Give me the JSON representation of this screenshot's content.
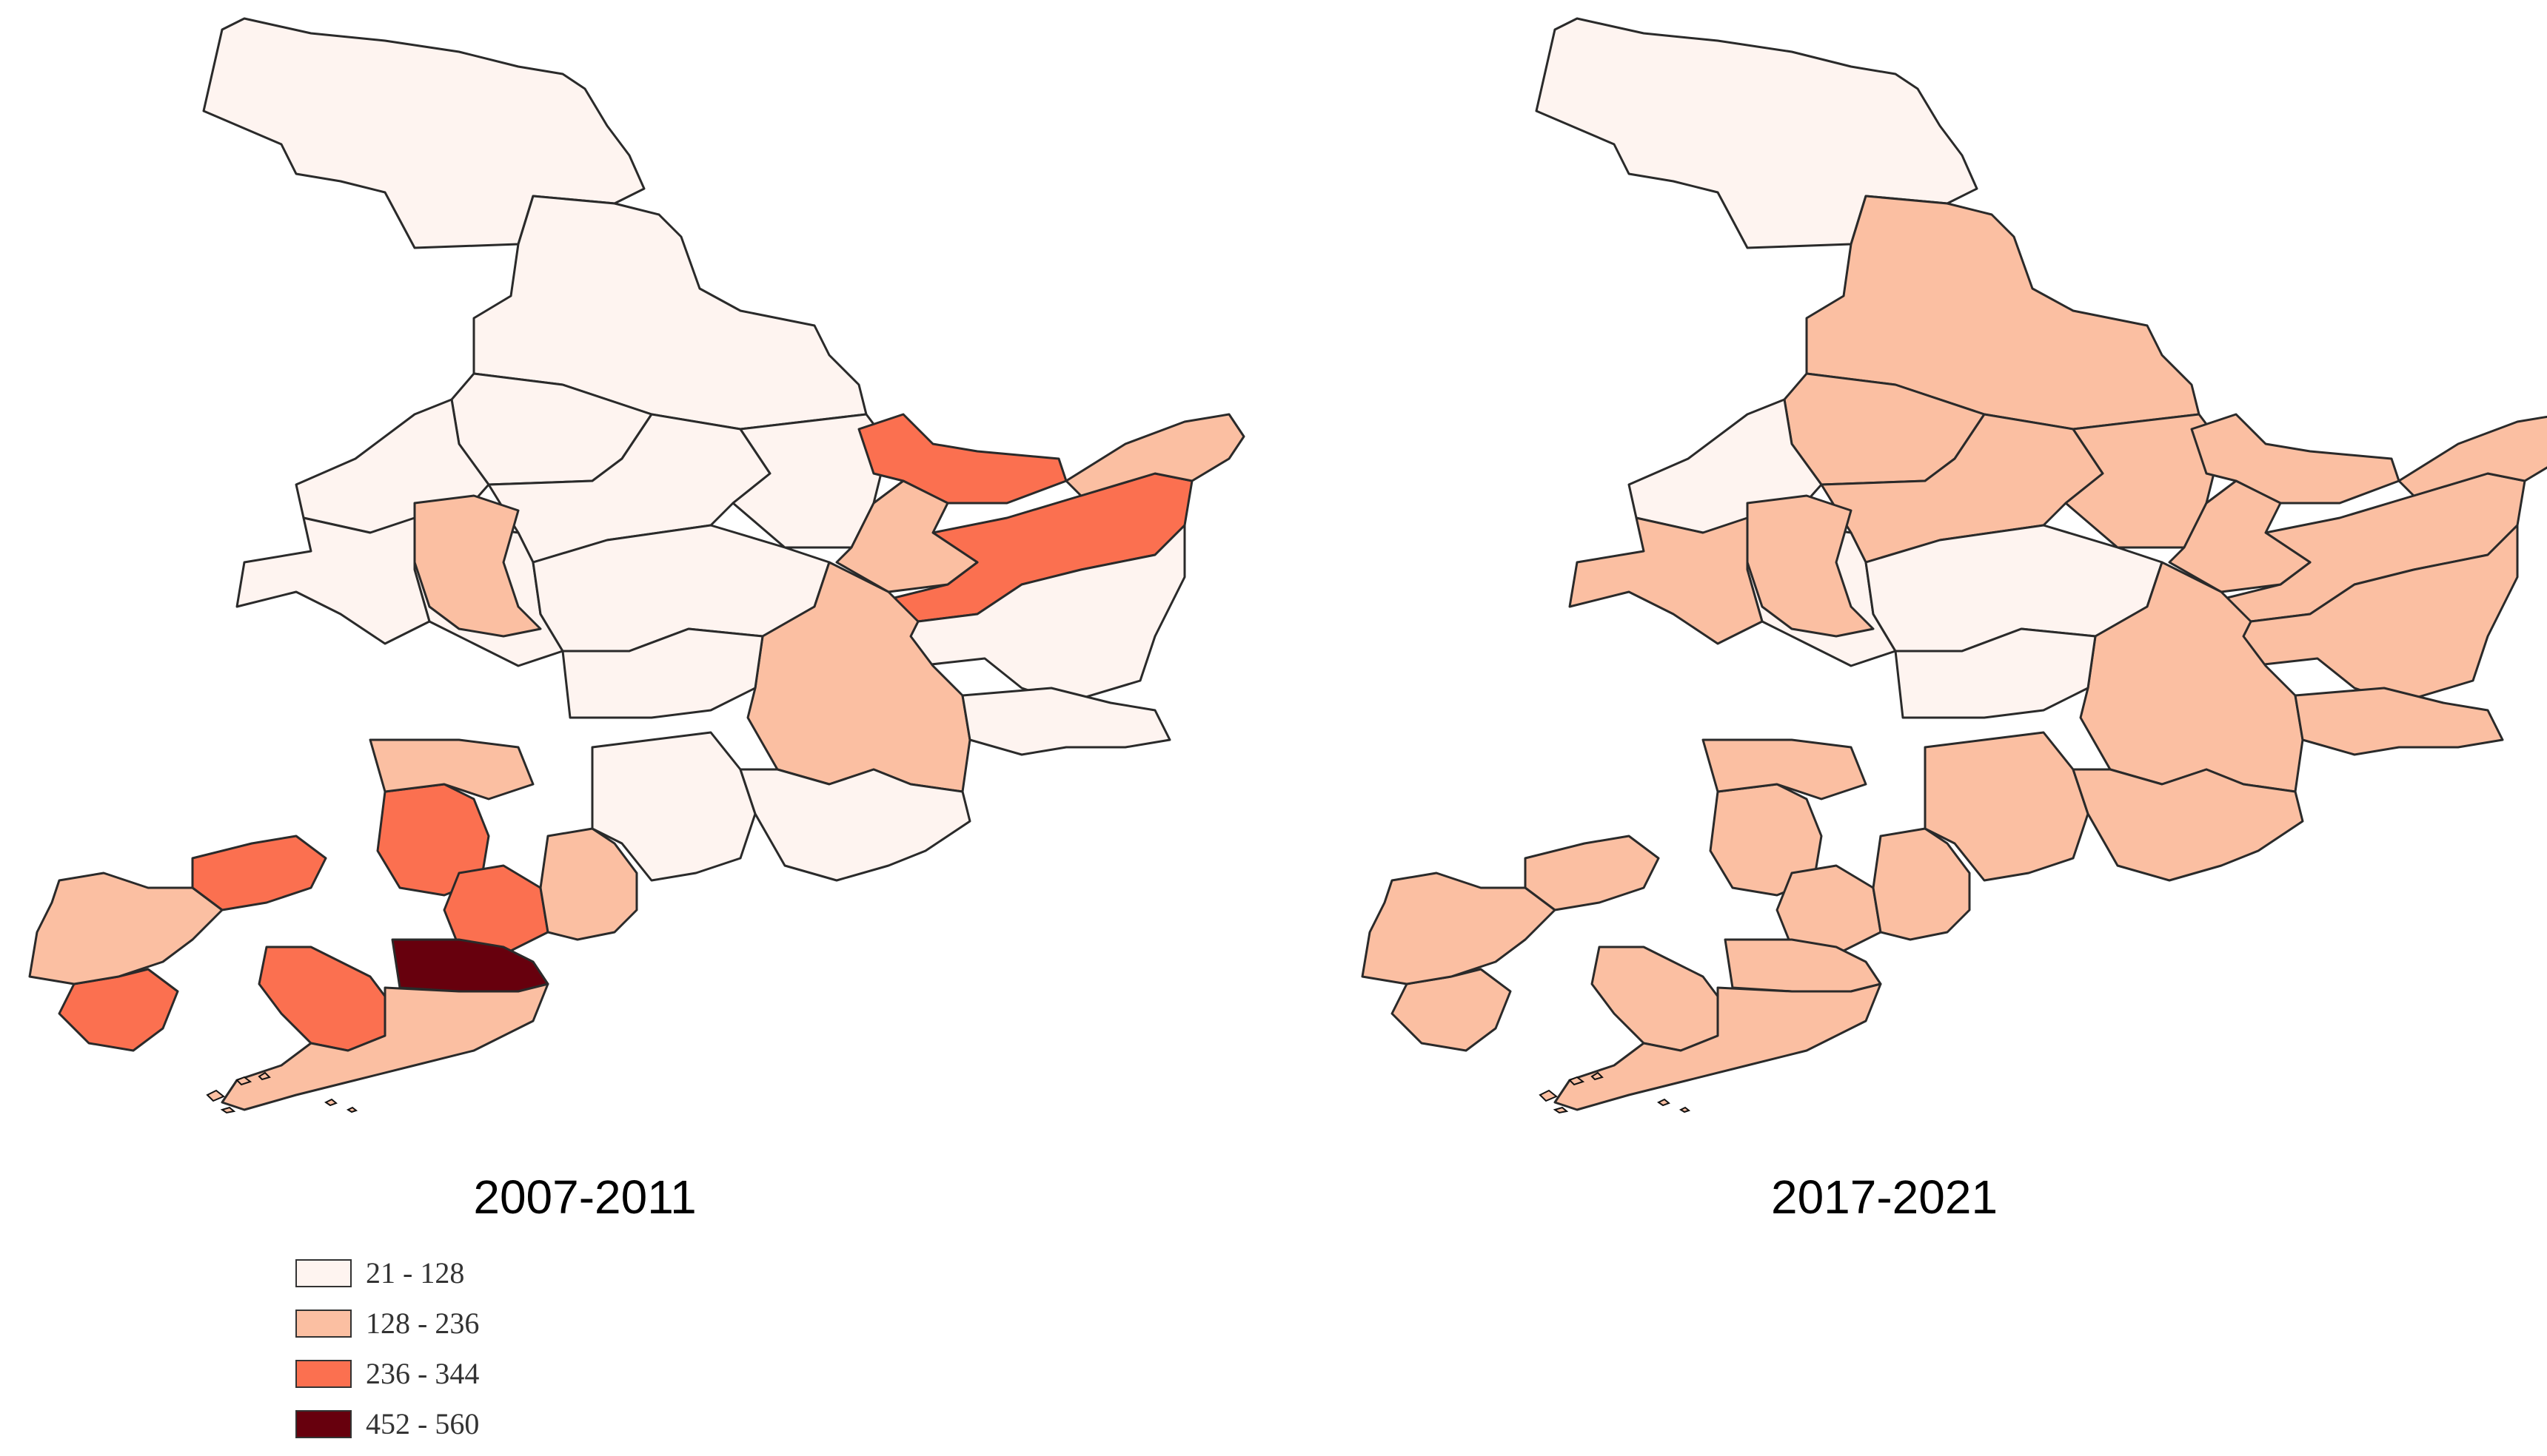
{
  "maps": [
    {
      "title": "2007-2011",
      "regions": [
        {
          "name": "r01",
          "value": 60
        },
        {
          "name": "r02",
          "value": 60
        },
        {
          "name": "r03",
          "value": 60
        },
        {
          "name": "r04",
          "value": 60
        },
        {
          "name": "r05",
          "value": 60
        },
        {
          "name": "r06",
          "value": 60
        },
        {
          "name": "r07",
          "value": 60
        },
        {
          "name": "r08",
          "value": 60
        },
        {
          "name": "r09",
          "value": 60
        },
        {
          "name": "r10",
          "value": 290
        },
        {
          "name": "r11",
          "value": 290
        },
        {
          "name": "r12",
          "value": 180
        },
        {
          "name": "r13",
          "value": 180
        },
        {
          "name": "r14",
          "value": 60
        },
        {
          "name": "r15",
          "value": 180
        },
        {
          "name": "r16",
          "value": 60
        },
        {
          "name": "r17",
          "value": 180
        },
        {
          "name": "r18",
          "value": 290
        },
        {
          "name": "r19",
          "value": 290
        },
        {
          "name": "r20",
          "value": 180
        },
        {
          "name": "r21",
          "value": 290
        },
        {
          "name": "r22",
          "value": 290
        },
        {
          "name": "r23",
          "value": 180
        },
        {
          "name": "r24",
          "value": 290
        },
        {
          "name": "r25",
          "value": 500
        },
        {
          "name": "r26",
          "value": 180
        },
        {
          "name": "r27",
          "value": 180
        },
        {
          "name": "r28",
          "value": 60
        },
        {
          "name": "r29",
          "value": 60
        },
        {
          "name": "r30",
          "value": 60
        }
      ]
    },
    {
      "title": "2017-2021",
      "regions": [
        {
          "name": "r01",
          "value": 60
        },
        {
          "name": "r02",
          "value": 180
        },
        {
          "name": "r03",
          "value": 180
        },
        {
          "name": "r04",
          "value": 60
        },
        {
          "name": "r05",
          "value": 180
        },
        {
          "name": "r06",
          "value": 180
        },
        {
          "name": "r07",
          "value": 60
        },
        {
          "name": "r08",
          "value": 180
        },
        {
          "name": "r09",
          "value": 60
        },
        {
          "name": "r10",
          "value": 180
        },
        {
          "name": "r11",
          "value": 180
        },
        {
          "name": "r12",
          "value": 180
        },
        {
          "name": "r13",
          "value": 180
        },
        {
          "name": "r14",
          "value": 180
        },
        {
          "name": "r15",
          "value": 180
        },
        {
          "name": "r16",
          "value": 60
        },
        {
          "name": "r17",
          "value": 180
        },
        {
          "name": "r18",
          "value": 180
        },
        {
          "name": "r19",
          "value": 180
        },
        {
          "name": "r20",
          "value": 180
        },
        {
          "name": "r21",
          "value": 180
        },
        {
          "name": "r22",
          "value": 180
        },
        {
          "name": "r23",
          "value": 180
        },
        {
          "name": "r24",
          "value": 180
        },
        {
          "name": "r25",
          "value": 180
        },
        {
          "name": "r26",
          "value": 180
        },
        {
          "name": "r27",
          "value": 180
        },
        {
          "name": "r28",
          "value": 180
        },
        {
          "name": "r29",
          "value": 180
        },
        {
          "name": "r30",
          "value": 180
        }
      ]
    }
  ],
  "legend": {
    "classes": [
      {
        "label": "21 - 128",
        "min": 21,
        "max": 128,
        "color": "#fef4f0"
      },
      {
        "label": "128 - 236",
        "min": 128,
        "max": 236,
        "color": "#fbbfa2"
      },
      {
        "label": "236 - 344",
        "min": 236,
        "max": 344,
        "color": "#fb7050"
      },
      {
        "label": "452 - 560",
        "min": 452,
        "max": 560,
        "color": "#67000d"
      }
    ]
  },
  "colors": {
    "no_data": "#ffffff",
    "border": "#2a2a2a"
  }
}
